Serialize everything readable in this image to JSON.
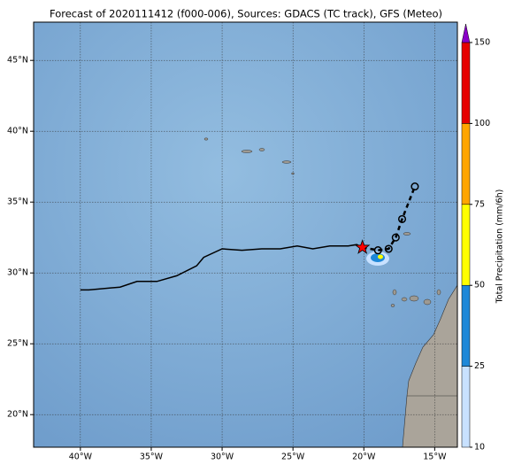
{
  "chart_data": {
    "type": "map",
    "title": "Forecast of 2020111412 (f000-006), Sources: GDACS (TC track), GFS (Meteo)",
    "xlim": [
      -43.3,
      -13.4
    ],
    "ylim": [
      17.7,
      47.7
    ],
    "xticks": [
      {
        "value": -40,
        "label": "40°W"
      },
      {
        "value": -35,
        "label": "35°W"
      },
      {
        "value": -30,
        "label": "30°W"
      },
      {
        "value": -25,
        "label": "25°W"
      },
      {
        "value": -20,
        "label": "20°W"
      },
      {
        "value": -15,
        "label": "15°W"
      }
    ],
    "yticks": [
      {
        "value": 20,
        "label": "20°N"
      },
      {
        "value": 25,
        "label": "25°N"
      },
      {
        "value": 30,
        "label": "30°N"
      },
      {
        "value": 35,
        "label": "35°N"
      },
      {
        "value": 40,
        "label": "40°N"
      },
      {
        "value": 45,
        "label": "45°N"
      }
    ],
    "grid": true,
    "track": {
      "lon": [
        -40.0,
        -39.4,
        -37.2,
        -36.0,
        -34.6,
        -33.2,
        -31.8,
        -31.3,
        -30.0,
        -28.6,
        -27.2,
        -25.9,
        -24.7,
        -23.6,
        -22.4,
        -21.1,
        -20.5,
        -20.1
      ],
      "lat": [
        28.8,
        28.8,
        29.0,
        29.4,
        29.4,
        29.8,
        30.5,
        31.1,
        31.7,
        31.6,
        31.7,
        31.7,
        31.9,
        31.7,
        31.9,
        31.9,
        32.0,
        31.8
      ],
      "color": "#000000"
    },
    "forecast": {
      "lon": [
        -20.1,
        -19.0,
        -18.25,
        -17.75,
        -17.3,
        -16.4
      ],
      "lat": [
        31.8,
        31.6,
        31.7,
        32.5,
        33.8,
        36.1
      ],
      "color": "#000000"
    },
    "current": {
      "lon": -20.1,
      "lat": 31.8,
      "color": "#ff0000"
    },
    "colorbar": {
      "label": "Total Precipitation (mm/6h)",
      "ticks": [
        10,
        25,
        50,
        75,
        100,
        150
      ],
      "colors": [
        "#c8e1ff",
        "#1e88d8",
        "#ffff00",
        "#ffa500",
        "#e60000"
      ],
      "extend_color": "#8a00c8"
    }
  }
}
